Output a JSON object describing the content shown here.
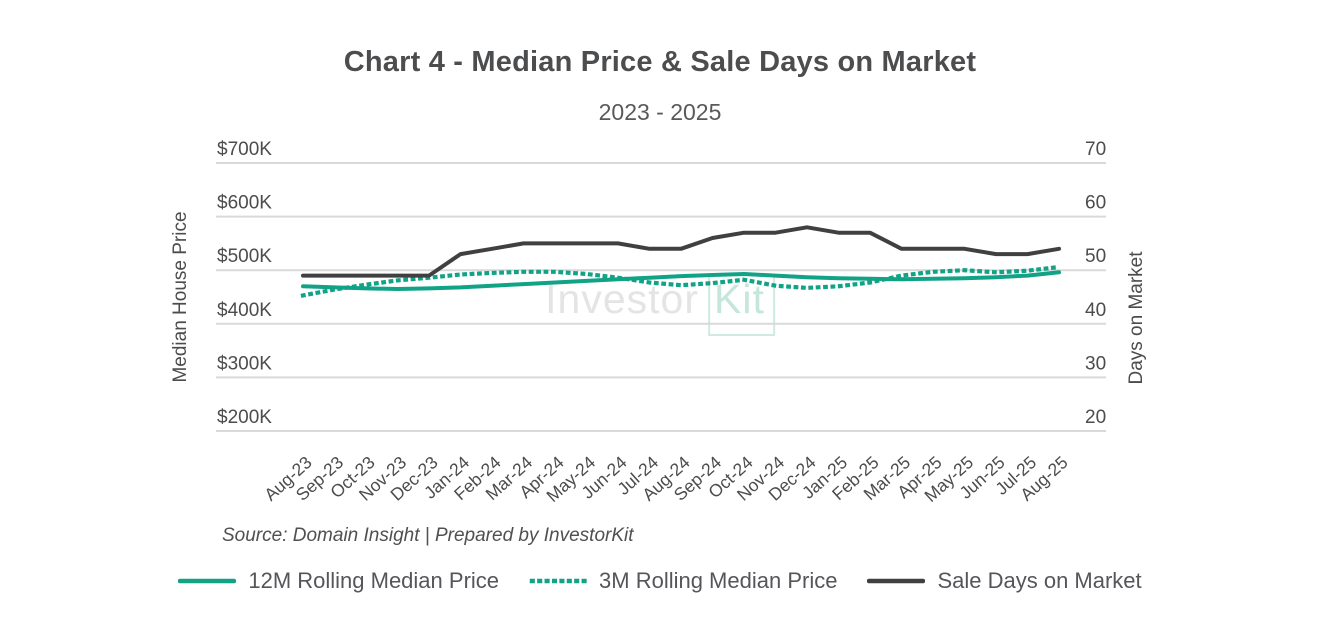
{
  "page": {
    "title": "Chart 4 - Median Price & Sale Days on Market",
    "subtitle": "2023 - 2025",
    "source_note": "Source: Domain Insight | Prepared by InvestorKit",
    "watermark": {
      "part1": "Investor",
      "part2": "Kit"
    }
  },
  "colors": {
    "accent_teal": "#12a387",
    "line_dark": "#404040",
    "grid": "#d9d9d9",
    "text": "#58595b",
    "watermark_gray": "#e4e4e4",
    "watermark_teal": "#c5e6da"
  },
  "chart_data": {
    "type": "line",
    "title": "Chart 4 - Median Price & Sale Days on Market",
    "subtitle": "2023 - 2025",
    "x": [
      "Aug-23",
      "Sep-23",
      "Oct-23",
      "Nov-23",
      "Dec-23",
      "Jan-24",
      "Feb-24",
      "Mar-24",
      "Apr-24",
      "May-24",
      "Jun-24",
      "Jul-24",
      "Aug-24",
      "Sep-24",
      "Oct-24",
      "Nov-24",
      "Dec-24",
      "Jan-25",
      "Feb-25",
      "Mar-25",
      "Apr-25",
      "May-25",
      "Jun-25",
      "Jul-25",
      "Aug-25"
    ],
    "series": [
      {
        "name": "12M Rolling Median Price",
        "axis": "left",
        "line_style": "solid",
        "color": "#12a387",
        "unit": "$K",
        "values": [
          470,
          468,
          466,
          465,
          466,
          468,
          471,
          474,
          477,
          480,
          483,
          486,
          489,
          491,
          493,
          490,
          487,
          485,
          484,
          483,
          484,
          485,
          487,
          490,
          496
        ]
      },
      {
        "name": "3M Rolling Median Price",
        "axis": "left",
        "line_style": "dotted",
        "color": "#12a387",
        "unit": "$K",
        "values": [
          453,
          464,
          473,
          481,
          486,
          492,
          495,
          497,
          497,
          493,
          486,
          477,
          472,
          476,
          482,
          471,
          467,
          470,
          477,
          490,
          497,
          500,
          496,
          499,
          506
        ]
      },
      {
        "name": "Sale Days on Market",
        "axis": "right",
        "line_style": "solid",
        "color": "#404040",
        "unit": "days",
        "values": [
          49,
          49,
          49,
          49,
          49,
          53,
          54,
          55,
          55,
          55,
          55,
          54,
          54,
          56,
          57,
          57,
          58,
          57,
          57,
          54,
          54,
          54,
          53,
          53,
          54
        ]
      }
    ],
    "left_axis": {
      "title": "Median House Price",
      "tick_labels": [
        "$700K",
        "$600K",
        "$500K",
        "$400K",
        "$300K",
        "$200K"
      ],
      "min": 200,
      "max": 700
    },
    "right_axis": {
      "title": "Days on Market",
      "tick_labels": [
        "70",
        "60",
        "50",
        "40",
        "30",
        "20"
      ],
      "min": 20,
      "max": 70
    },
    "grid": true,
    "legend_position": "bottom"
  }
}
